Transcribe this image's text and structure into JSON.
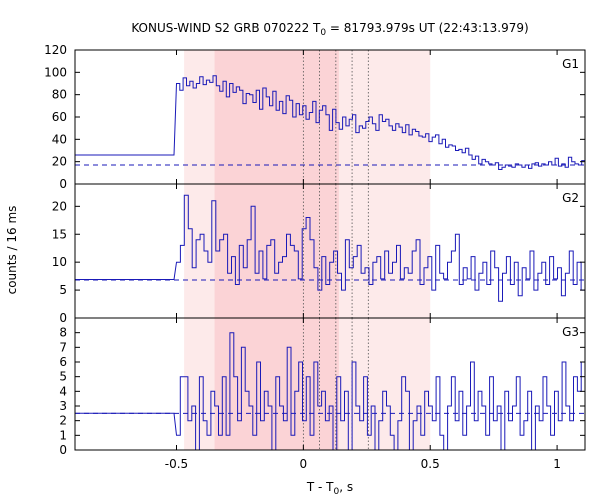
{
  "title_main": "KONUS-WIND S2 GRB 070222 T",
  "title_sub": "0",
  "title_rest": " = 81793.979s UT (22:43:13.979)",
  "ylabel": "counts / 16 ms",
  "xlabel_main": "T - T",
  "xlabel_sub": "0",
  "xlabel_rest": ", s",
  "colors": {
    "line": "#1a1ab8",
    "shade_light": "#fdeaea",
    "shade_dark": "#fbd3d6",
    "axis": "#000000",
    "vline": "#555555"
  },
  "chart_data": {
    "type": "line",
    "xlim": [
      -0.9,
      1.11
    ],
    "xticks": [
      -0.5,
      0,
      0.5,
      1
    ],
    "xtick_labels": [
      "-0.5",
      "0",
      "0.5",
      "1"
    ],
    "shaded_regions": [
      {
        "from": -0.47,
        "to": 0.5,
        "shade": "light"
      },
      {
        "from": -0.35,
        "to": 0.14,
        "shade": "dark"
      }
    ],
    "vertical_dotted_lines": [
      0.0,
      0.064,
      0.128,
      0.192,
      0.256
    ],
    "panels": [
      {
        "name": "G1",
        "ylim": [
          0,
          120
        ],
        "yticks": [
          0,
          20,
          40,
          60,
          80,
          100,
          120
        ],
        "background": 17,
        "pre_trigger_level": 26,
        "values": [
          90,
          84,
          95,
          88,
          92,
          86,
          90,
          96,
          89,
          93,
          91,
          97,
          88,
          83,
          92,
          78,
          90,
          82,
          87,
          84,
          72,
          81,
          80,
          73,
          84,
          67,
          86,
          78,
          70,
          83,
          66,
          74,
          63,
          79,
          75,
          60,
          72,
          62,
          70,
          58,
          64,
          74,
          55,
          66,
          70,
          62,
          48,
          67,
          55,
          49,
          60,
          52,
          58,
          62,
          46,
          52,
          50,
          56,
          60,
          54,
          48,
          62,
          56,
          58,
          52,
          48,
          54,
          51,
          46,
          53,
          44,
          49,
          47,
          43,
          42,
          45,
          38,
          42,
          44,
          36,
          40,
          33,
          35,
          34,
          30,
          31,
          28,
          32,
          26,
          22,
          25,
          18,
          22,
          20,
          18,
          17,
          19,
          13,
          15,
          17,
          16,
          15,
          18,
          17,
          15,
          17,
          14,
          18,
          19,
          16,
          18,
          17,
          20,
          17,
          23,
          16,
          18,
          15,
          24,
          20,
          18,
          17,
          21
        ]
      },
      {
        "name": "G2",
        "ylim": [
          0,
          24
        ],
        "yticks": [
          0,
          5,
          10,
          15,
          20
        ],
        "background": 6.8,
        "pre_trigger_level": 6.9,
        "values": [
          10,
          13,
          22,
          16,
          9,
          14,
          15,
          12,
          10,
          21,
          12,
          14,
          15,
          8,
          11,
          6,
          13,
          9,
          14,
          20,
          8,
          12,
          7,
          13,
          14,
          8,
          10,
          11,
          15,
          13,
          12,
          7,
          16,
          18,
          14,
          9,
          5,
          11,
          6,
          10,
          12,
          8,
          5,
          14,
          9,
          11,
          13,
          8,
          9,
          6,
          10,
          11,
          7,
          12,
          8,
          10,
          13,
          7,
          9,
          8,
          12,
          14,
          6,
          9,
          11,
          5,
          13,
          8,
          7,
          10,
          12,
          15,
          6,
          9,
          7,
          11,
          5,
          8,
          10,
          6,
          12,
          9,
          3,
          8,
          11,
          6,
          10,
          4,
          9,
          7,
          12,
          5,
          8,
          10,
          6,
          11,
          7,
          9,
          4,
          8,
          12,
          6,
          10,
          5
        ]
      },
      {
        "name": "G3",
        "ylim": [
          0,
          9
        ],
        "yticks": [
          0,
          1,
          2,
          3,
          4,
          5,
          6,
          7,
          8
        ],
        "background": 2.5,
        "pre_trigger_level": 2.5,
        "values": [
          1,
          5,
          5,
          2,
          3,
          0,
          5,
          2,
          1,
          4,
          3,
          1,
          5,
          1,
          8,
          5,
          2,
          7,
          4,
          3,
          1,
          6,
          2,
          4,
          3,
          0,
          5,
          3,
          2,
          7,
          1,
          4,
          6,
          2,
          5,
          1,
          6,
          3,
          4,
          2,
          3,
          0,
          5,
          2,
          4,
          0,
          6,
          3,
          2,
          5,
          1,
          3,
          0,
          2,
          4,
          3,
          1,
          0,
          2,
          5,
          4,
          0,
          2,
          3,
          1,
          4,
          3,
          2,
          5,
          1,
          0,
          3,
          5,
          2,
          4,
          1,
          3,
          6,
          2,
          4,
          3,
          1,
          5,
          2,
          3,
          0,
          4,
          2,
          3,
          5,
          1,
          2,
          4,
          0,
          3,
          2,
          5,
          3,
          1,
          4,
          2,
          6,
          3,
          2,
          5,
          4,
          6
        ]
      }
    ]
  }
}
